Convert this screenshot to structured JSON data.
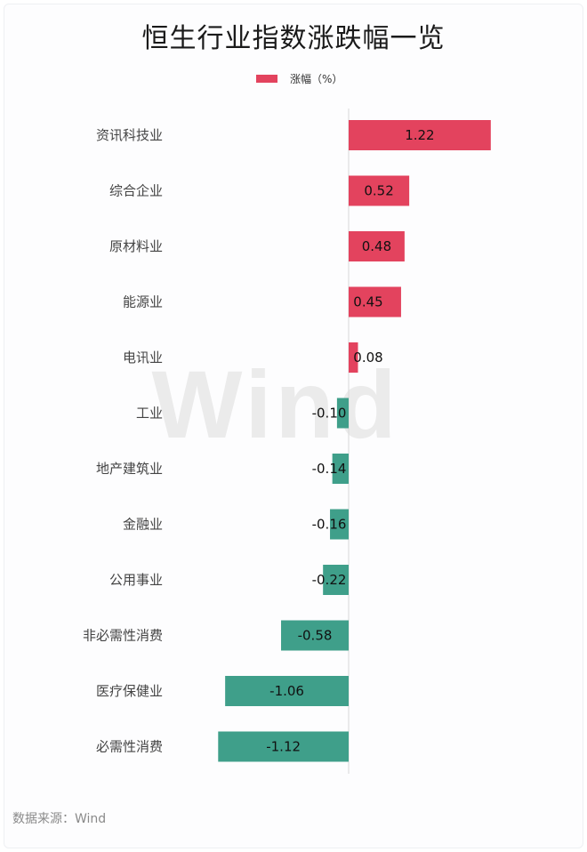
{
  "title": "恒生行业指数涨跌幅一览",
  "legend": {
    "label": "涨幅（%）",
    "color": "#e3435e"
  },
  "watermark": "Wind",
  "source": "数据来源：Wind",
  "colors": {
    "positive": "#e3435e",
    "negative": "#3f9f8a"
  },
  "chart_data": {
    "type": "bar",
    "orientation": "horizontal",
    "categories": [
      "资讯科技业",
      "综合企业",
      "原材料业",
      "能源业",
      "电讯业",
      "工业",
      "地产建筑业",
      "金融业",
      "公用事业",
      "非必需性消费",
      "医疗保健业",
      "必需性消费"
    ],
    "series": [
      {
        "name": "涨幅（%）",
        "values": [
          1.22,
          0.52,
          0.48,
          0.45,
          0.08,
          -0.1,
          -0.14,
          -0.16,
          -0.22,
          -0.58,
          -1.06,
          -1.12
        ]
      }
    ],
    "labels": [
      "1.22",
      "0.52",
      "0.48",
      "0.45",
      "0.08",
      "-0.10",
      "-0.14",
      "-0.16",
      "-0.22",
      "-0.58",
      "-1.06",
      "-1.12"
    ],
    "title": "恒生行业指数涨跌幅一览",
    "legend_position": "top-center",
    "grid": false
  }
}
